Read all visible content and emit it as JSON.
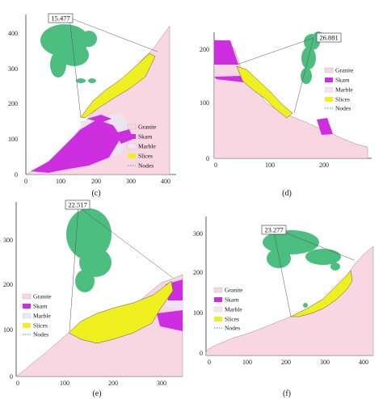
{
  "legend_items": [
    {
      "label": "Granite",
      "color": "#f8d7e3"
    },
    {
      "label": "Skarn",
      "color": "#cc2ee0"
    },
    {
      "label": "Marble",
      "color": "#efe7f2"
    },
    {
      "label": "Slices",
      "color": "#f0f020"
    },
    {
      "label": "Nodes",
      "color": "#5fc9a8"
    }
  ],
  "colors": {
    "granite": "#f8d7e3",
    "skarn": "#cc2ee0",
    "marble": "#ede4f1",
    "slices": "#f0f020",
    "nodes": "#2db36b"
  },
  "panels": [
    {
      "label": "(c)",
      "fos": "15.477",
      "x_ticks": [
        "0",
        "100",
        "200",
        "300",
        "400"
      ],
      "y_ticks": [
        "0",
        "100",
        "200",
        "300",
        "400"
      ]
    },
    {
      "label": "(d)",
      "fos": "26.881",
      "x_ticks": [
        "0",
        "100",
        "200"
      ],
      "y_ticks": [
        "0",
        "100",
        "200"
      ]
    },
    {
      "label": "(e)",
      "fos": "22.517",
      "x_ticks": [
        "0",
        "100",
        "200",
        "300"
      ],
      "y_ticks": [
        "0",
        "100",
        "200",
        "300"
      ]
    },
    {
      "label": "(f)",
      "fos": "23.277",
      "x_ticks": [
        "0",
        "100",
        "200",
        "300",
        "400"
      ],
      "y_ticks": [
        "0",
        "100",
        "200",
        "300"
      ]
    }
  ]
}
